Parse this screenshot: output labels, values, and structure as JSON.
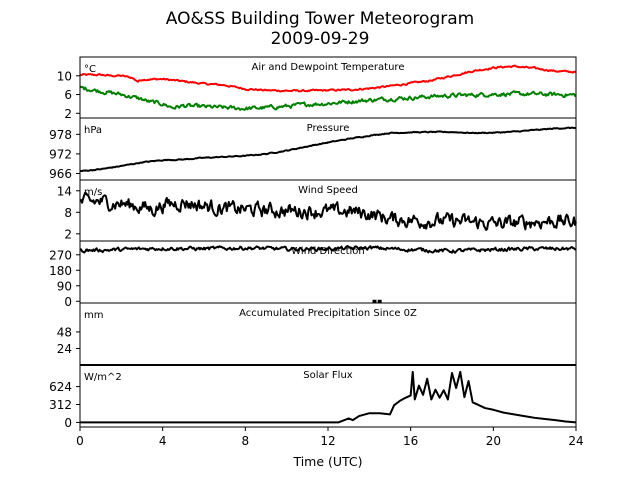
{
  "chart_data": {
    "title": "AO&SS Building Tower Meteorogram",
    "subtitle": "2009-09-29",
    "xlabel": "Time (UTC)",
    "xlim": [
      0,
      24
    ],
    "xticks": [
      "0",
      "4",
      "8",
      "12",
      "16",
      "20",
      "24"
    ],
    "panels": [
      {
        "type": "line",
        "title": "Air and Dewpoint Temperature",
        "unit": "°C",
        "ylim": [
          1,
          14
        ],
        "yticks": [
          "2",
          "6",
          "10"
        ],
        "series": [
          {
            "color": "#ff0000",
            "noise": 0.15,
            "x": [
              0,
              1,
              1.5,
              2,
              2.5,
              2.8,
              3,
              4,
              5,
              6,
              7,
              8,
              9,
              10,
              11,
              12,
              13,
              14,
              15,
              16,
              17,
              18,
              19,
              20,
              20.5,
              21,
              22,
              23,
              24
            ],
            "y": [
              10.2,
              10.2,
              10.0,
              10.0,
              9.6,
              8.8,
              9.2,
              9.3,
              8.8,
              8.3,
              8.0,
              7.2,
              6.9,
              6.8,
              6.8,
              6.9,
              7.0,
              7.3,
              7.8,
              8.4,
              9.0,
              10.0,
              11.0,
              11.7,
              11.9,
              12.0,
              11.6,
              11.0,
              10.8
            ]
          },
          {
            "color": "#008000",
            "noise": 0.35,
            "x": [
              0,
              1,
              2,
              3,
              3.3,
              4,
              4.5,
              5,
              6,
              7,
              8,
              9,
              10,
              11,
              12,
              13,
              14,
              15,
              16,
              17,
              18,
              19,
              20,
              21,
              22,
              23,
              24
            ],
            "y": [
              7.5,
              6.7,
              6.0,
              5.0,
              4.5,
              4.0,
              3.2,
              3.6,
              3.4,
              3.2,
              3.0,
              3.2,
              3.5,
              3.9,
              4.1,
              4.5,
              4.8,
              5.1,
              5.3,
              5.6,
              5.8,
              5.9,
              6.1,
              6.1,
              6.1,
              6.0,
              5.9
            ]
          }
        ]
      },
      {
        "type": "line",
        "title": "Pressure",
        "unit": "hPa",
        "ylim": [
          964,
          983
        ],
        "yticks": [
          "966",
          "972",
          "978"
        ],
        "series": [
          {
            "color": "#000000",
            "noise": 0.12,
            "x": [
              0,
              1,
              2,
              3,
              4,
              5,
              6,
              7,
              8,
              9,
              10,
              11,
              12,
              13,
              14,
              15,
              16,
              17,
              18,
              19,
              20,
              21,
              22,
              23,
              24
            ],
            "y": [
              966.7,
              967.3,
              968.3,
              969.4,
              970.1,
              970.3,
              970.8,
              971.1,
              971.4,
              972.0,
              973.0,
              974.3,
              975.5,
              976.6,
              977.6,
              978.4,
              978.6,
              978.7,
              978.7,
              978.4,
              978.5,
              978.8,
              979.3,
              979.8,
              980.0
            ]
          }
        ]
      },
      {
        "type": "line",
        "title": "Wind Speed",
        "unit": "m/s",
        "ylim": [
          0,
          17
        ],
        "yticks": [
          "2",
          "8",
          "14"
        ],
        "series": [
          {
            "color": "#000000",
            "noise": 1.6,
            "x": [
              0,
              1,
              2,
              3,
              3.5,
              4,
              5,
              6,
              7,
              8,
              9,
              10,
              11,
              12,
              13,
              14,
              15,
              16,
              17,
              18,
              19,
              20,
              21,
              22,
              23,
              24
            ],
            "y": [
              10.8,
              11.0,
              10.4,
              9.5,
              8.8,
              10.0,
              10.8,
              9.8,
              9.0,
              8.8,
              8.6,
              8.4,
              8.4,
              8.2,
              8.3,
              7.6,
              6.2,
              5.8,
              5.6,
              5.6,
              5.2,
              4.8,
              5.0,
              5.4,
              5.6,
              5.3
            ]
          }
        ]
      },
      {
        "type": "line",
        "title": "Wind Direction",
        "unit": "°",
        "ylim": [
          -10,
          350
        ],
        "yticks": [
          "0",
          "90",
          "180",
          "270"
        ],
        "series": [
          {
            "color": "#000000",
            "noise": 9,
            "x": [
              0,
              2,
              4,
              6,
              8,
              10,
              12,
              14,
              16,
              18,
              20,
              22,
              24
            ],
            "y": [
              295,
              300,
              308,
              305,
              310,
              303,
              305,
              310,
              300,
              292,
              300,
              305,
              305
            ]
          }
        ],
        "points": [
          {
            "x": 14.25,
            "y": 0
          },
          {
            "x": 14.5,
            "y": 0
          }
        ]
      },
      {
        "type": "line",
        "title": "Accumulated Precipitation Since 0Z",
        "unit": "mm",
        "ylim": [
          0,
          90
        ],
        "yticks": [
          "24",
          "48"
        ],
        "series": [
          {
            "color": "#000000",
            "noise": 0,
            "x": [
              0,
              24
            ],
            "y": [
              0,
              0
            ]
          }
        ]
      },
      {
        "type": "line",
        "title": "Solar Flux",
        "unit": "W/m^2",
        "ylim": [
          -80,
          1000
        ],
        "yticks": [
          "0",
          "312",
          "624"
        ],
        "series": [
          {
            "color": "#000000",
            "noise": 0,
            "x": [
              0,
              12.5,
              13,
              13.2,
              13.5,
              14,
              14.5,
              15,
              15.2,
              15.5,
              15.7,
              16.0,
              16.1,
              16.2,
              16.4,
              16.6,
              16.8,
              17.0,
              17.2,
              17.4,
              17.6,
              17.8,
              18.0,
              18.2,
              18.4,
              18.6,
              18.8,
              19.0,
              19.3,
              19.6,
              20.0,
              20.5,
              21.0,
              21.5,
              22.0,
              22.5,
              23.0,
              23.5,
              24.0
            ],
            "y": [
              0,
              0,
              70,
              40,
              110,
              160,
              160,
              140,
              300,
              380,
              420,
              470,
              880,
              400,
              640,
              480,
              760,
              400,
              570,
              430,
              560,
              400,
              860,
              600,
              880,
              440,
              720,
              350,
              300,
              250,
              220,
              170,
              140,
              110,
              80,
              60,
              40,
              15,
              0
            ]
          }
        ]
      }
    ]
  }
}
